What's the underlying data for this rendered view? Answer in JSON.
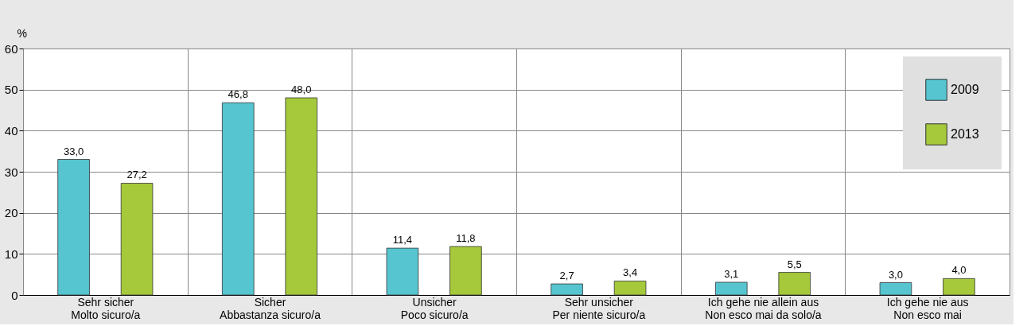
{
  "chart_data": {
    "type": "bar",
    "ylabel": "%",
    "categories": [
      "Sehr sicher\nMolto sicuro/a",
      "Sicher\nAbbastanza sicuro/a",
      "Unsicher\nPoco sicuro/a",
      "Sehr unsicher\nPer niente sicuro/a",
      "Ich gehe nie allein aus\nNon esco mai da solo/a",
      "Ich gehe nie aus\nNon esco mai"
    ],
    "series": [
      {
        "name": "2009",
        "color": "#56c5d0",
        "values": [
          33.0,
          46.8,
          11.4,
          2.7,
          3.1,
          3.0
        ],
        "value_labels": [
          "33,0",
          "46,8",
          "11,4",
          "2,7",
          "3,1",
          "3,0"
        ]
      },
      {
        "name": "2013",
        "color": "#a5c93a",
        "values": [
          27.2,
          48.0,
          11.8,
          3.4,
          5.5,
          4.0
        ],
        "value_labels": [
          "27,2",
          "48,0",
          "11,8",
          "3,4",
          "5,5",
          "4,0"
        ]
      }
    ],
    "ylim": [
      0,
      60
    ],
    "yticks": [
      0,
      10,
      20,
      30,
      40,
      50,
      60
    ],
    "grid": true,
    "legend": "top right"
  }
}
